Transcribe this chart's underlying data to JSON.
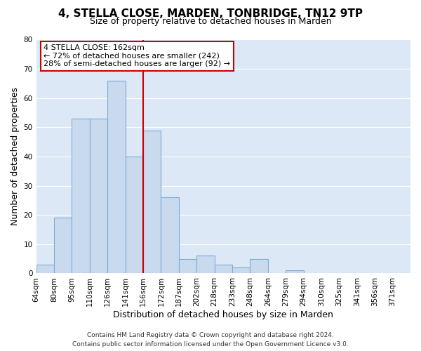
{
  "title": "4, STELLA CLOSE, MARDEN, TONBRIDGE, TN12 9TP",
  "subtitle": "Size of property relative to detached houses in Marden",
  "xlabel": "Distribution of detached houses by size in Marden",
  "ylabel": "Number of detached properties",
  "bin_labels": [
    "64sqm",
    "80sqm",
    "95sqm",
    "110sqm",
    "126sqm",
    "141sqm",
    "156sqm",
    "172sqm",
    "187sqm",
    "202sqm",
    "218sqm",
    "233sqm",
    "248sqm",
    "264sqm",
    "279sqm",
    "294sqm",
    "310sqm",
    "325sqm",
    "341sqm",
    "356sqm",
    "371sqm"
  ],
  "bar_values": [
    3,
    19,
    53,
    53,
    66,
    40,
    49,
    26,
    5,
    6,
    3,
    2,
    5,
    0,
    1,
    0,
    0,
    0,
    0,
    0,
    0
  ],
  "bar_color": "#c9d9ee",
  "bar_edge_color": "#7eadd4",
  "ylim": [
    0,
    80
  ],
  "yticks": [
    0,
    10,
    20,
    30,
    40,
    50,
    60,
    70,
    80
  ],
  "vline_x_index": 6,
  "vline_color": "#cc0000",
  "annotation_title": "4 STELLA CLOSE: 162sqm",
  "annotation_line1": "← 72% of detached houses are smaller (242)",
  "annotation_line2": "28% of semi-detached houses are larger (92) →",
  "annotation_box_color": "#ffffff",
  "annotation_box_edge": "#cc0000",
  "footer1": "Contains HM Land Registry data © Crown copyright and database right 2024.",
  "footer2": "Contains public sector information licensed under the Open Government Licence v3.0.",
  "fig_bg_color": "#ffffff",
  "plot_bg_color": "#dce8f5",
  "grid_color": "#ffffff",
  "title_fontsize": 11,
  "subtitle_fontsize": 9,
  "axis_label_fontsize": 9,
  "tick_fontsize": 7.5,
  "footer_fontsize": 6.5,
  "annotation_fontsize": 8
}
